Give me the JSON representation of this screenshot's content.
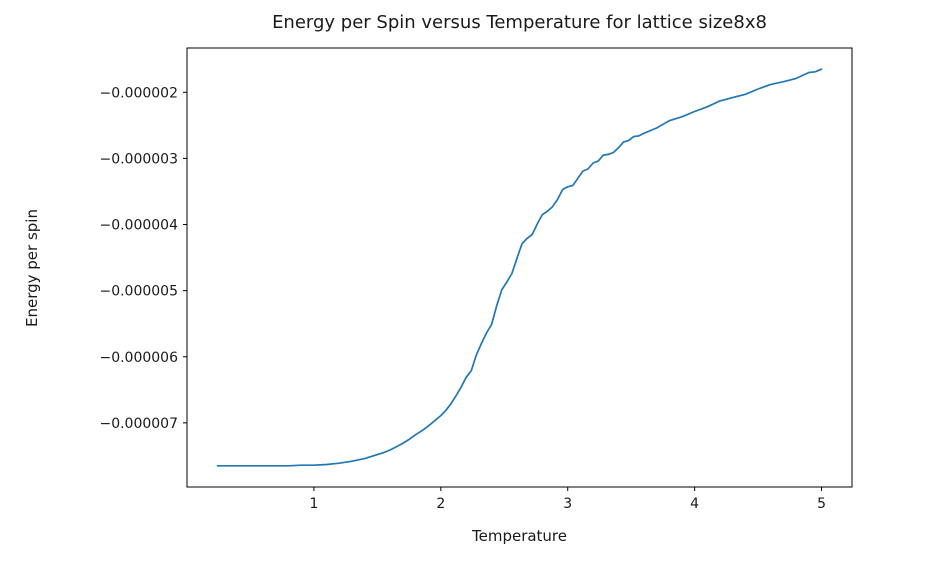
{
  "chart_data": {
    "type": "line",
    "title": "Energy per Spin versus Temperature for lattice size8x8",
    "xlabel": "Temperature",
    "ylabel": "Energy per spin",
    "xlim": [
      0.0,
      5.24
    ],
    "ylim": [
      -7.97e-06,
      -1.33e-06
    ],
    "grid": false,
    "legend": "none",
    "line_color": "#1f77b4",
    "background_color": "#ffffff",
    "xticks": {
      "values": [
        1,
        2,
        3,
        4,
        5
      ],
      "labels": [
        "1",
        "2",
        "3",
        "4",
        "5"
      ]
    },
    "yticks": {
      "values": [
        -7e-06,
        -6e-06,
        -5e-06,
        -4e-06,
        -3e-06,
        -2e-06
      ],
      "labels": [
        "−0.000007",
        "−0.000006",
        "−0.000005",
        "−0.000004",
        "−0.000003",
        "−0.000002"
      ]
    },
    "series": [
      {
        "name": "energy-per-spin",
        "x": [
          0.24,
          0.3,
          0.4,
          0.5,
          0.6,
          0.7,
          0.8,
          0.9,
          1.0,
          1.1,
          1.2,
          1.3,
          1.4,
          1.5,
          1.55,
          1.6,
          1.65,
          1.7,
          1.75,
          1.8,
          1.85,
          1.9,
          1.95,
          2.0,
          2.04,
          2.08,
          2.12,
          2.16,
          2.2,
          2.24,
          2.28,
          2.32,
          2.36,
          2.4,
          2.44,
          2.48,
          2.52,
          2.56,
          2.6,
          2.64,
          2.68,
          2.72,
          2.76,
          2.8,
          2.84,
          2.88,
          2.92,
          2.96,
          3.0,
          3.04,
          3.08,
          3.12,
          3.16,
          3.2,
          3.24,
          3.28,
          3.32,
          3.36,
          3.4,
          3.44,
          3.48,
          3.52,
          3.56,
          3.6,
          3.7,
          3.8,
          3.9,
          4.0,
          4.1,
          4.2,
          4.3,
          4.4,
          4.5,
          4.6,
          4.7,
          4.8,
          4.9,
          4.95,
          5.0
        ],
        "y": [
          -7.65e-06,
          -7.65e-06,
          -7.65e-06,
          -7.65e-06,
          -7.65e-06,
          -7.65e-06,
          -7.65e-06,
          -7.64e-06,
          -7.64e-06,
          -7.63e-06,
          -7.61e-06,
          -7.58e-06,
          -7.54e-06,
          -7.48e-06,
          -7.45e-06,
          -7.41e-06,
          -7.36e-06,
          -7.31e-06,
          -7.25e-06,
          -7.18e-06,
          -7.12e-06,
          -7.05e-06,
          -6.97e-06,
          -6.89e-06,
          -6.81e-06,
          -6.71e-06,
          -6.59e-06,
          -6.46e-06,
          -6.31e-06,
          -6.21e-06,
          -5.97e-06,
          -5.8e-06,
          -5.64e-06,
          -5.51e-06,
          -5.23e-06,
          -4.99e-06,
          -4.87e-06,
          -4.74e-06,
          -4.51e-06,
          -4.29e-06,
          -4.21e-06,
          -4.15e-06,
          -3.99e-06,
          -3.85e-06,
          -3.8e-06,
          -3.73e-06,
          -3.62e-06,
          -3.47e-06,
          -3.43e-06,
          -3.41e-06,
          -3.3e-06,
          -3.19e-06,
          -3.16e-06,
          -3.07e-06,
          -3.04e-06,
          -2.95e-06,
          -2.94e-06,
          -2.91e-06,
          -2.84e-06,
          -2.75e-06,
          -2.73e-06,
          -2.67e-06,
          -2.66e-06,
          -2.62e-06,
          -2.54e-06,
          -2.43e-06,
          -2.37e-06,
          -2.29e-06,
          -2.22e-06,
          -2.13e-06,
          -2.08e-06,
          -2.03e-06,
          -1.95e-06,
          -1.88e-06,
          -1.84e-06,
          -1.79e-06,
          -1.7e-06,
          -1.69e-06,
          -1.65e-06
        ]
      }
    ]
  }
}
